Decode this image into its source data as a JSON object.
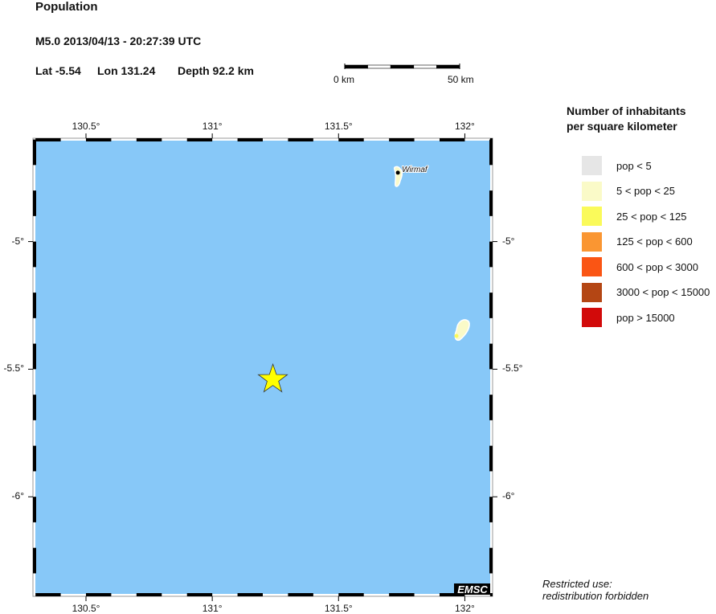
{
  "header": {
    "title": "Population",
    "event": "M5.0  2013/04/13 - 20:27:39 UTC",
    "lat": "Lat -5.54",
    "lon": "Lon 131.24",
    "depth": "Depth  92.2 km"
  },
  "scale_bar": {
    "start_label": "0 km",
    "end_label": "50 km",
    "length_km": 50
  },
  "map": {
    "lon_range": [
      130.29,
      132.11
    ],
    "lat_range": [
      -6.39,
      -4.595
    ],
    "water_color": "#87c8f8",
    "lon_ticks": [
      {
        "value": 130.5,
        "label": "130.5°"
      },
      {
        "value": 131.0,
        "label": "131°"
      },
      {
        "value": 131.5,
        "label": "131.5°"
      },
      {
        "value": 132.0,
        "label": "132°"
      }
    ],
    "lat_ticks": [
      {
        "value": -5.0,
        "label": "-5°"
      },
      {
        "value": -5.5,
        "label": "-5.5°"
      },
      {
        "value": -6.0,
        "label": "-6°"
      }
    ],
    "epicenter": {
      "lat": -5.54,
      "lon": 131.24,
      "color": "#ffff00",
      "marker": "star"
    },
    "places": [
      {
        "name": "Wirmaf",
        "lat": -4.73,
        "lon": 131.735
      }
    ],
    "watermark": "EMSC"
  },
  "legend": {
    "title_line1": "Number of inhabitants",
    "title_line2": "per square kilometer",
    "items": [
      {
        "label": "pop < 5",
        "color": "#e6e6e6"
      },
      {
        "label": "5 < pop < 25",
        "color": "#fafac8"
      },
      {
        "label": "25 < pop < 125",
        "color": "#fafa5a"
      },
      {
        "label": "125 < pop < 600",
        "color": "#fa9632"
      },
      {
        "label": "600 < pop < 3000",
        "color": "#fa5514"
      },
      {
        "label": "3000 < pop < 15000",
        "color": "#b44614"
      },
      {
        "label": "pop > 15000",
        "color": "#d20a0a"
      }
    ]
  },
  "footer": {
    "line1": "Restricted use:",
    "line2": "redistribution forbidden"
  }
}
